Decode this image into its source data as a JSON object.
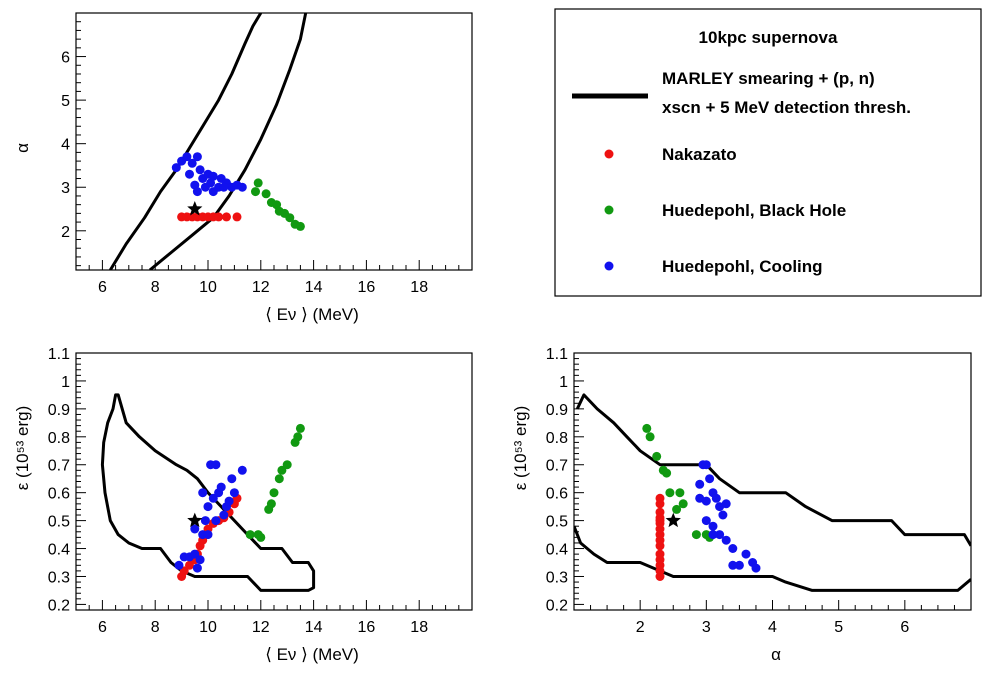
{
  "colors": {
    "nakazato": "#ee1111",
    "black_hole": "#119911",
    "cooling": "#1111ee",
    "contour": "#000000"
  },
  "legend": {
    "title": "10kpc supernova",
    "entries": [
      {
        "key": "contour",
        "lines": [
          "MARLEY smearing + (p, n)",
          "xscn + 5 MeV detection thresh."
        ]
      },
      {
        "key": "nakazato",
        "lines": [
          "Nakazato"
        ]
      },
      {
        "key": "black_hole",
        "lines": [
          "Huedepohl, Black Hole"
        ]
      },
      {
        "key": "cooling",
        "lines": [
          "Huedepohl, Cooling"
        ]
      }
    ]
  },
  "chart_data": [
    {
      "id": "alpha_vs_E",
      "type": "scatter",
      "xlabel": "⟨ Eν ⟩ (MeV)",
      "ylabel": "α",
      "xlim": [
        5,
        20
      ],
      "ylim": [
        1.1,
        7.0
      ],
      "xticks": [
        "6",
        "8",
        "10",
        "12",
        "14",
        "16",
        "18"
      ],
      "yticks": [
        "2",
        "3",
        "4",
        "5",
        "6"
      ],
      "true_point": [
        9.5,
        2.5
      ],
      "contour": [
        [
          [
            6.3,
            1.1
          ],
          [
            6.9,
            1.7
          ],
          [
            7.6,
            2.3
          ],
          [
            8.2,
            2.9
          ],
          [
            8.8,
            3.4
          ],
          [
            9.3,
            3.9
          ],
          [
            9.9,
            4.5
          ],
          [
            10.4,
            5.0
          ],
          [
            10.9,
            5.6
          ],
          [
            11.4,
            6.3
          ],
          [
            11.7,
            6.7
          ],
          [
            12.0,
            7.0
          ]
        ],
        [
          [
            7.8,
            1.1
          ],
          [
            8.6,
            1.5
          ],
          [
            9.4,
            1.9
          ],
          [
            10.2,
            2.3
          ],
          [
            10.8,
            2.8
          ],
          [
            11.4,
            3.4
          ],
          [
            12.0,
            4.1
          ],
          [
            12.6,
            4.9
          ],
          [
            13.1,
            5.7
          ],
          [
            13.5,
            6.4
          ],
          [
            13.7,
            7.0
          ]
        ]
      ],
      "series": [
        {
          "key": "nakazato",
          "points": [
            [
              9.0,
              2.32
            ],
            [
              9.2,
              2.32
            ],
            [
              9.4,
              2.32
            ],
            [
              9.6,
              2.32
            ],
            [
              9.8,
              2.32
            ],
            [
              10.0,
              2.32
            ],
            [
              10.2,
              2.32
            ],
            [
              10.4,
              2.32
            ],
            [
              10.7,
              2.32
            ],
            [
              11.1,
              2.32
            ]
          ]
        },
        {
          "key": "black_hole",
          "points": [
            [
              11.8,
              2.9
            ],
            [
              11.9,
              3.1
            ],
            [
              12.2,
              2.85
            ],
            [
              12.4,
              2.65
            ],
            [
              12.6,
              2.6
            ],
            [
              12.7,
              2.45
            ],
            [
              12.9,
              2.4
            ],
            [
              13.1,
              2.3
            ],
            [
              13.3,
              2.15
            ],
            [
              13.5,
              2.1
            ]
          ]
        },
        {
          "key": "cooling",
          "points": [
            [
              8.8,
              3.45
            ],
            [
              9.0,
              3.6
            ],
            [
              9.2,
              3.7
            ],
            [
              9.4,
              3.55
            ],
            [
              9.6,
              3.7
            ],
            [
              9.3,
              3.3
            ],
            [
              9.5,
              3.05
            ],
            [
              9.6,
              2.9
            ],
            [
              9.8,
              3.2
            ],
            [
              9.9,
              3.0
            ],
            [
              10.0,
              3.3
            ],
            [
              10.1,
              3.1
            ],
            [
              10.2,
              3.25
            ],
            [
              10.4,
              3.0
            ],
            [
              10.5,
              3.2
            ],
            [
              10.7,
              3.1
            ],
            [
              10.9,
              3.0
            ],
            [
              11.1,
              3.05
            ],
            [
              11.3,
              3.0
            ],
            [
              9.7,
              3.4
            ],
            [
              10.2,
              2.9
            ],
            [
              10.6,
              3.0
            ]
          ]
        }
      ]
    },
    {
      "id": "eps_vs_E",
      "type": "scatter",
      "xlabel": "⟨ Eν ⟩ (MeV)",
      "ylabel": "ε (10⁵³ erg)",
      "xlim": [
        5,
        20
      ],
      "ylim": [
        0.18,
        1.1
      ],
      "xticks": [
        "6",
        "8",
        "10",
        "12",
        "14",
        "16",
        "18"
      ],
      "yticks": [
        "0.2",
        "0.3",
        "0.4",
        "0.5",
        "0.6",
        "0.7",
        "0.8",
        "0.9",
        "1",
        "1.1"
      ],
      "true_point": [
        9.5,
        0.5
      ],
      "contour": [
        [
          [
            6.5,
            0.95
          ],
          [
            6.4,
            0.9
          ],
          [
            6.2,
            0.85
          ],
          [
            6.05,
            0.78
          ],
          [
            6.0,
            0.7
          ],
          [
            6.1,
            0.6
          ],
          [
            6.3,
            0.5
          ],
          [
            6.6,
            0.45
          ],
          [
            7.0,
            0.42
          ],
          [
            7.5,
            0.4
          ],
          [
            8.2,
            0.4
          ],
          [
            8.6,
            0.35
          ],
          [
            9.0,
            0.32
          ],
          [
            9.5,
            0.3
          ],
          [
            10.5,
            0.3
          ],
          [
            11.5,
            0.3
          ],
          [
            12.0,
            0.25
          ],
          [
            13.8,
            0.25
          ],
          [
            14.0,
            0.26
          ],
          [
            14.0,
            0.32
          ],
          [
            13.8,
            0.35
          ],
          [
            13.2,
            0.35
          ],
          [
            12.8,
            0.4
          ],
          [
            12.0,
            0.4
          ],
          [
            11.5,
            0.45
          ],
          [
            11.0,
            0.5
          ],
          [
            10.5,
            0.55
          ],
          [
            10.0,
            0.6
          ],
          [
            9.6,
            0.65
          ],
          [
            9.2,
            0.68
          ],
          [
            8.8,
            0.7
          ],
          [
            8.0,
            0.75
          ],
          [
            7.4,
            0.8
          ],
          [
            6.9,
            0.85
          ],
          [
            6.6,
            0.95
          ]
        ]
      ],
      "series": [
        {
          "key": "nakazato",
          "points": [
            [
              9.0,
              0.3
            ],
            [
              9.1,
              0.32
            ],
            [
              9.3,
              0.34
            ],
            [
              9.5,
              0.36
            ],
            [
              9.6,
              0.38
            ],
            [
              9.7,
              0.41
            ],
            [
              9.8,
              0.43
            ],
            [
              9.9,
              0.45
            ],
            [
              10.0,
              0.47
            ],
            [
              10.2,
              0.49
            ],
            [
              10.4,
              0.5
            ],
            [
              10.6,
              0.51
            ],
            [
              10.8,
              0.53
            ],
            [
              11.0,
              0.56
            ],
            [
              11.1,
              0.58
            ]
          ]
        },
        {
          "key": "black_hole",
          "points": [
            [
              11.6,
              0.45
            ],
            [
              11.9,
              0.45
            ],
            [
              12.0,
              0.44
            ],
            [
              12.3,
              0.54
            ],
            [
              12.4,
              0.56
            ],
            [
              12.5,
              0.6
            ],
            [
              12.7,
              0.65
            ],
            [
              12.8,
              0.68
            ],
            [
              13.0,
              0.7
            ],
            [
              13.3,
              0.78
            ],
            [
              13.4,
              0.8
            ],
            [
              13.5,
              0.83
            ]
          ]
        },
        {
          "key": "cooling",
          "points": [
            [
              8.9,
              0.34
            ],
            [
              9.1,
              0.37
            ],
            [
              9.3,
              0.37
            ],
            [
              9.5,
              0.38
            ],
            [
              9.7,
              0.36
            ],
            [
              9.6,
              0.33
            ],
            [
              9.8,
              0.45
            ],
            [
              9.9,
              0.5
            ],
            [
              10.0,
              0.55
            ],
            [
              10.1,
              0.7
            ],
            [
              10.3,
              0.7
            ],
            [
              10.2,
              0.58
            ],
            [
              10.4,
              0.6
            ],
            [
              10.5,
              0.62
            ],
            [
              10.6,
              0.52
            ],
            [
              10.7,
              0.55
            ],
            [
              10.8,
              0.57
            ],
            [
              10.9,
              0.65
            ],
            [
              11.0,
              0.6
            ],
            [
              11.3,
              0.68
            ],
            [
              10.0,
              0.45
            ],
            [
              10.3,
              0.5
            ],
            [
              9.5,
              0.47
            ],
            [
              9.8,
              0.6
            ]
          ]
        }
      ]
    },
    {
      "id": "eps_vs_alpha",
      "type": "scatter",
      "xlabel": "α",
      "ylabel": "ε (10⁵³ erg)",
      "xlim": [
        1.0,
        7.0
      ],
      "ylim": [
        0.18,
        1.1
      ],
      "xticks": [
        "2",
        "3",
        "4",
        "5",
        "6"
      ],
      "yticks": [
        "0.2",
        "0.3",
        "0.4",
        "0.5",
        "0.6",
        "0.7",
        "0.8",
        "0.9",
        "1",
        "1.1"
      ],
      "true_point": [
        2.5,
        0.5
      ],
      "contour": [
        [
          [
            1.05,
            0.9
          ],
          [
            1.15,
            0.95
          ],
          [
            1.35,
            0.9
          ],
          [
            1.6,
            0.85
          ],
          [
            1.8,
            0.8
          ],
          [
            2.0,
            0.75
          ],
          [
            2.3,
            0.7
          ],
          [
            3.0,
            0.7
          ],
          [
            3.2,
            0.65
          ],
          [
            3.5,
            0.6
          ],
          [
            4.2,
            0.6
          ],
          [
            4.5,
            0.55
          ],
          [
            4.9,
            0.5
          ],
          [
            5.8,
            0.5
          ],
          [
            6.0,
            0.45
          ],
          [
            6.9,
            0.45
          ],
          [
            7.0,
            0.41
          ]
        ],
        [
          [
            1.0,
            0.48
          ],
          [
            1.1,
            0.42
          ],
          [
            1.3,
            0.38
          ],
          [
            1.5,
            0.35
          ],
          [
            2.0,
            0.35
          ],
          [
            2.3,
            0.32
          ],
          [
            2.5,
            0.3
          ],
          [
            4.0,
            0.3
          ],
          [
            4.2,
            0.28
          ],
          [
            4.6,
            0.25
          ],
          [
            6.8,
            0.25
          ],
          [
            7.0,
            0.29
          ]
        ]
      ],
      "series": [
        {
          "key": "nakazato",
          "points": [
            [
              2.3,
              0.3
            ],
            [
              2.3,
              0.32
            ],
            [
              2.3,
              0.34
            ],
            [
              2.3,
              0.36
            ],
            [
              2.3,
              0.38
            ],
            [
              2.3,
              0.41
            ],
            [
              2.3,
              0.43
            ],
            [
              2.3,
              0.45
            ],
            [
              2.3,
              0.47
            ],
            [
              2.3,
              0.49
            ],
            [
              2.3,
              0.5
            ],
            [
              2.3,
              0.51
            ],
            [
              2.3,
              0.53
            ],
            [
              2.3,
              0.56
            ],
            [
              2.3,
              0.58
            ]
          ]
        },
        {
          "key": "black_hole",
          "points": [
            [
              2.1,
              0.83
            ],
            [
              2.15,
              0.8
            ],
            [
              2.25,
              0.73
            ],
            [
              2.35,
              0.68
            ],
            [
              2.4,
              0.67
            ],
            [
              2.45,
              0.6
            ],
            [
              2.6,
              0.6
            ],
            [
              2.65,
              0.56
            ],
            [
              2.55,
              0.54
            ],
            [
              2.85,
              0.45
            ],
            [
              3.0,
              0.45
            ],
            [
              3.05,
              0.44
            ]
          ]
        },
        {
          "key": "cooling",
          "points": [
            [
              2.95,
              0.7
            ],
            [
              3.0,
              0.7
            ],
            [
              3.05,
              0.65
            ],
            [
              2.9,
              0.63
            ],
            [
              3.1,
              0.6
            ],
            [
              3.15,
              0.58
            ],
            [
              3.2,
              0.55
            ],
            [
              3.25,
              0.52
            ],
            [
              3.3,
              0.56
            ],
            [
              3.0,
              0.5
            ],
            [
              3.1,
              0.48
            ],
            [
              3.2,
              0.45
            ],
            [
              3.3,
              0.43
            ],
            [
              3.4,
              0.4
            ],
            [
              3.5,
              0.34
            ],
            [
              3.6,
              0.38
            ],
            [
              3.7,
              0.35
            ],
            [
              3.75,
              0.33
            ],
            [
              2.9,
              0.58
            ],
            [
              3.0,
              0.57
            ],
            [
              3.1,
              0.45
            ],
            [
              3.4,
              0.34
            ]
          ]
        }
      ]
    }
  ]
}
